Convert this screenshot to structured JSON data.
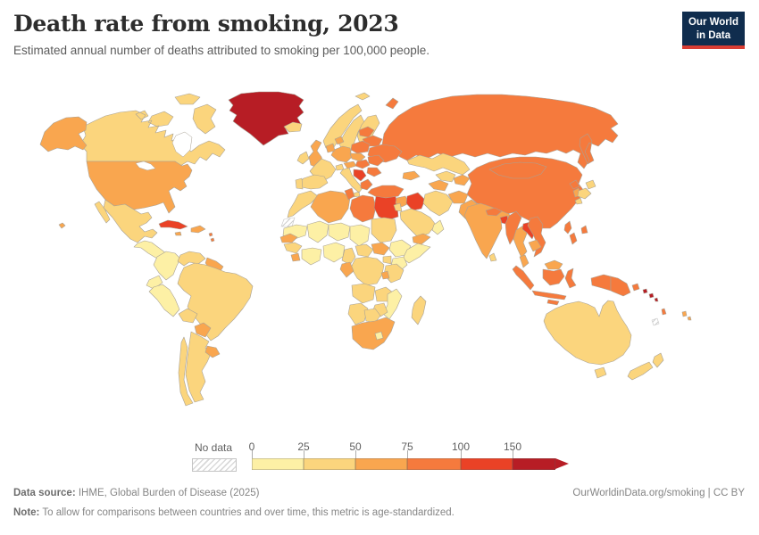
{
  "header": {
    "title": "Death rate from smoking, 2023",
    "subtitle": "Estimated annual number of deaths attributed to smoking per 100,000 people."
  },
  "logo": {
    "line1": "Our World",
    "line2": "in Data",
    "bg_color": "#102d4e",
    "accent_color": "#d93d33"
  },
  "legend": {
    "no_data_label": "No data",
    "ticks": [
      "0",
      "25",
      "50",
      "75",
      "100",
      "150"
    ]
  },
  "footer": {
    "source_label": "Data source:",
    "source_text": " IHME, Global Burden of Disease (2025)",
    "link_text": "OurWorldinData.org/smoking | CC BY",
    "note_label": "Note:",
    "note_text": " To allow for comparisons between countries and over time, this metric is age-standardized."
  },
  "chart_data": {
    "type": "choropleth",
    "title": "Death rate from smoking, 2023",
    "unit": "estimated annual deaths attributed to smoking per 100,000 people",
    "year": 2023,
    "bin_edges": [
      0,
      25,
      50,
      75,
      100,
      150
    ],
    "bins": [
      {
        "range": "0-25",
        "color": "#fdf0a5"
      },
      {
        "range": "25-50",
        "color": "#fbd57d"
      },
      {
        "range": "50-75",
        "color": "#f9a64f"
      },
      {
        "range": "75-100",
        "color": "#f57a3d"
      },
      {
        "range": "100-150",
        "color": "#ea4226"
      },
      {
        "range": "150+",
        "color": "#b71d25"
      }
    ],
    "no_data": {
      "label": "No data",
      "pattern": "hatched"
    },
    "regions": [
      {
        "id": "russia",
        "name": "Russia",
        "bin": 4
      },
      {
        "id": "canada",
        "name": "Canada",
        "bin": 2
      },
      {
        "id": "usa",
        "name": "United States",
        "bin": 3
      },
      {
        "id": "greenland",
        "name": "Greenland",
        "bin": 6
      },
      {
        "id": "mexico",
        "name": "Mexico",
        "bin": 2
      },
      {
        "id": "central_america",
        "name": "Central America",
        "bin": 1
      },
      {
        "id": "colombia",
        "name": "Colombia",
        "bin": 1
      },
      {
        "id": "venezuela",
        "name": "Venezuela",
        "bin": 2
      },
      {
        "id": "guyanas",
        "name": "Guyana & Suriname",
        "bin": 3
      },
      {
        "id": "ecuador",
        "name": "Ecuador",
        "bin": 1
      },
      {
        "id": "peru",
        "name": "Peru",
        "bin": 1
      },
      {
        "id": "brazil",
        "name": "Brazil",
        "bin": 2
      },
      {
        "id": "chile",
        "name": "Chile",
        "bin": 2
      },
      {
        "id": "argentina",
        "name": "Argentina",
        "bin": 2
      },
      {
        "id": "bolivia",
        "name": "Bolivia",
        "bin": 2
      },
      {
        "id": "paraguay",
        "name": "Paraguay",
        "bin": 3
      },
      {
        "id": "uruguay",
        "name": "Uruguay",
        "bin": 3
      },
      {
        "id": "norway",
        "name": "Norway",
        "bin": 2
      },
      {
        "id": "sweden",
        "name": "Sweden",
        "bin": 2
      },
      {
        "id": "finland",
        "name": "Finland",
        "bin": 2
      },
      {
        "id": "iceland",
        "name": "Iceland",
        "bin": 2
      },
      {
        "id": "uk",
        "name": "United Kingdom",
        "bin": 3
      },
      {
        "id": "ireland",
        "name": "Ireland",
        "bin": 2
      },
      {
        "id": "denmark",
        "name": "Denmark",
        "bin": 3
      },
      {
        "id": "baltics",
        "name": "Baltic States",
        "bin": 4
      },
      {
        "id": "belarus",
        "name": "Belarus",
        "bin": 4
      },
      {
        "id": "ukraine",
        "name": "Ukraine",
        "bin": 4
      },
      {
        "id": "poland",
        "name": "Poland",
        "bin": 4
      },
      {
        "id": "germany",
        "name": "Germany",
        "bin": 3
      },
      {
        "id": "benelux",
        "name": "Belgium & Netherlands",
        "bin": 3
      },
      {
        "id": "france",
        "name": "France",
        "bin": 2
      },
      {
        "id": "spain",
        "name": "Spain",
        "bin": 2
      },
      {
        "id": "portugal",
        "name": "Portugal",
        "bin": 2
      },
      {
        "id": "italy",
        "name": "Italy",
        "bin": 2
      },
      {
        "id": "switzerland",
        "name": "Switzerland",
        "bin": 2
      },
      {
        "id": "austria",
        "name": "Austria",
        "bin": 3
      },
      {
        "id": "czechia_slovakia",
        "name": "Czechia & Slovakia",
        "bin": 3
      },
      {
        "id": "hungary",
        "name": "Hungary",
        "bin": 4
      },
      {
        "id": "romania",
        "name": "Romania",
        "bin": 4
      },
      {
        "id": "bulgaria",
        "name": "Bulgaria",
        "bin": 4
      },
      {
        "id": "balkans",
        "name": "Serbia & Western Balkans",
        "bin": 5
      },
      {
        "id": "greece",
        "name": "Greece",
        "bin": 4
      },
      {
        "id": "morocco",
        "name": "Morocco",
        "bin": 2
      },
      {
        "id": "western_sahara",
        "name": "Western Sahara",
        "bin": 0
      },
      {
        "id": "algeria",
        "name": "Algeria",
        "bin": 3
      },
      {
        "id": "tunisia",
        "name": "Tunisia",
        "bin": 4
      },
      {
        "id": "libya",
        "name": "Libya",
        "bin": 4
      },
      {
        "id": "egypt",
        "name": "Egypt",
        "bin": 5
      },
      {
        "id": "mauritania",
        "name": "Mauritania",
        "bin": 1
      },
      {
        "id": "mali",
        "name": "Mali",
        "bin": 1
      },
      {
        "id": "niger",
        "name": "Niger",
        "bin": 1
      },
      {
        "id": "chad",
        "name": "Chad",
        "bin": 1
      },
      {
        "id": "sudan",
        "name": "Sudan",
        "bin": 2
      },
      {
        "id": "senegal",
        "name": "Senegal",
        "bin": 3
      },
      {
        "id": "guinea",
        "name": "Guinea",
        "bin": 2
      },
      {
        "id": "sierra_leone",
        "name": "Sierra Leone",
        "bin": 3
      },
      {
        "id": "ivory_ghana",
        "name": "Ivory Coast & Ghana",
        "bin": 1
      },
      {
        "id": "nigeria",
        "name": "Nigeria",
        "bin": 1
      },
      {
        "id": "cameroon",
        "name": "Cameroon",
        "bin": 2
      },
      {
        "id": "car",
        "name": "Central African Republic",
        "bin": 2
      },
      {
        "id": "south_sudan",
        "name": "South Sudan",
        "bin": 3
      },
      {
        "id": "ethiopia",
        "name": "Ethiopia",
        "bin": 1
      },
      {
        "id": "somalia",
        "name": "Somalia",
        "bin": 1
      },
      {
        "id": "kenya",
        "name": "Kenya",
        "bin": 1
      },
      {
        "id": "uganda",
        "name": "Uganda",
        "bin": 2
      },
      {
        "id": "drc",
        "name": "Democratic Republic of Congo",
        "bin": 2
      },
      {
        "id": "gabon_congo",
        "name": "Gabon & Congo",
        "bin": 3
      },
      {
        "id": "tanzania",
        "name": "Tanzania",
        "bin": 2
      },
      {
        "id": "rwanda_burundi",
        "name": "Rwanda & Burundi",
        "bin": 3
      },
      {
        "id": "angola",
        "name": "Angola",
        "bin": 2
      },
      {
        "id": "zambia",
        "name": "Zambia",
        "bin": 2
      },
      {
        "id": "mozambique",
        "name": "Mozambique",
        "bin": 1
      },
      {
        "id": "zimbabwe",
        "name": "Zimbabwe",
        "bin": 2
      },
      {
        "id": "namibia",
        "name": "Namibia",
        "bin": 2
      },
      {
        "id": "botswana",
        "name": "Botswana",
        "bin": 2
      },
      {
        "id": "south_africa",
        "name": "South Africa",
        "bin": 3
      },
      {
        "id": "lesotho",
        "name": "Lesotho",
        "bin": 1
      },
      {
        "id": "madagascar",
        "name": "Madagascar",
        "bin": 2
      },
      {
        "id": "kazakhstan",
        "name": "Kazakhstan",
        "bin": 2
      },
      {
        "id": "turkey",
        "name": "Turkey",
        "bin": 4
      },
      {
        "id": "caucasus",
        "name": "Georgia, Armenia & Azerbaijan",
        "bin": 3
      },
      {
        "id": "syria",
        "name": "Syria",
        "bin": 3
      },
      {
        "id": "jordan_israel",
        "name": "Israel & Jordan",
        "bin": 2
      },
      {
        "id": "iraq",
        "name": "Iraq",
        "bin": 5
      },
      {
        "id": "saudi_arabia",
        "name": "Saudi Arabia",
        "bin": 2
      },
      {
        "id": "yemen",
        "name": "Yemen",
        "bin": 3
      },
      {
        "id": "oman",
        "name": "Oman & UAE",
        "bin": 1
      },
      {
        "id": "iran",
        "name": "Iran",
        "bin": 2
      },
      {
        "id": "turkmenistan",
        "name": "Turkmenistan",
        "bin": 3
      },
      {
        "id": "uzbekistan",
        "name": "Uzbekistan",
        "bin": 2
      },
      {
        "id": "kyrgyz_tajik",
        "name": "Kyrgyzstan & Tajikistan",
        "bin": 3
      },
      {
        "id": "afghanistan",
        "name": "Afghanistan",
        "bin": 3
      },
      {
        "id": "pakistan",
        "name": "Pakistan",
        "bin": 3
      },
      {
        "id": "china",
        "name": "China",
        "bin": 4
      },
      {
        "id": "mongolia",
        "name": "Mongolia",
        "bin": 4
      },
      {
        "id": "india",
        "name": "India",
        "bin": 3
      },
      {
        "id": "nepal",
        "name": "Nepal",
        "bin": 4
      },
      {
        "id": "bangladesh",
        "name": "Bangladesh",
        "bin": 5
      },
      {
        "id": "sri_lanka",
        "name": "Sri Lanka",
        "bin": 2
      },
      {
        "id": "myanmar",
        "name": "Myanmar",
        "bin": 4
      },
      {
        "id": "thailand",
        "name": "Thailand",
        "bin": 3
      },
      {
        "id": "laos",
        "name": "Laos",
        "bin": 5
      },
      {
        "id": "vietnam",
        "name": "Vietnam",
        "bin": 4
      },
      {
        "id": "cambodia",
        "name": "Cambodia",
        "bin": 3
      },
      {
        "id": "malaysia",
        "name": "Malaysia",
        "bin": 3
      },
      {
        "id": "north_korea",
        "name": "North Korea",
        "bin": 4
      },
      {
        "id": "south_korea",
        "name": "South Korea",
        "bin": 3
      },
      {
        "id": "japan",
        "name": "Japan",
        "bin": 2
      },
      {
        "id": "taiwan",
        "name": "Taiwan",
        "bin": 4
      },
      {
        "id": "philippines",
        "name": "Philippines",
        "bin": 4
      },
      {
        "id": "indonesia",
        "name": "Indonesia",
        "bin": 4
      },
      {
        "id": "png",
        "name": "Papua New Guinea",
        "bin": 4
      },
      {
        "id": "solomon",
        "name": "Solomon Islands",
        "bin": 6
      },
      {
        "id": "vanuatu",
        "name": "Vanuatu",
        "bin": 4
      },
      {
        "id": "fiji",
        "name": "Fiji",
        "bin": 3
      },
      {
        "id": "new_caledonia",
        "name": "New Caledonia",
        "bin": 0
      },
      {
        "id": "australia",
        "name": "Australia",
        "bin": 2
      },
      {
        "id": "new_zealand",
        "name": "New Zealand",
        "bin": 2
      },
      {
        "id": "cuba",
        "name": "Cuba",
        "bin": 5
      },
      {
        "id": "hispaniola",
        "name": "Haiti & Dominican Republic",
        "bin": 3
      },
      {
        "id": "jamaica",
        "name": "Jamaica",
        "bin": 3
      },
      {
        "id": "lesser_antilles",
        "name": "Lesser Antilles",
        "bin": 4
      }
    ]
  }
}
